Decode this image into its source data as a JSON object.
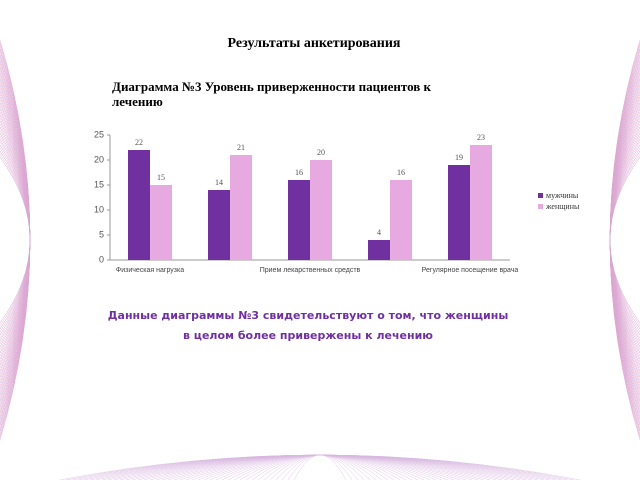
{
  "page_title": "Результаты анкетирования",
  "chart_data": {
    "type": "bar",
    "title": "Диаграмма №3 Уровень приверженности пациентов к лечению",
    "categories": [
      "Физическая нагрузка",
      null,
      "Прием лекарственных средств",
      null,
      "Регулярное посещение врача"
    ],
    "series": [
      {
        "name": "мужчины",
        "color": "#7030a0",
        "values": [
          22,
          14,
          16,
          4,
          19
        ]
      },
      {
        "name": "женщины",
        "color": "#e6a9e0",
        "values": [
          15,
          21,
          20,
          16,
          23
        ]
      }
    ],
    "ylim": [
      0,
      25
    ],
    "yticks": [
      0,
      5,
      10,
      15,
      20,
      25
    ],
    "grid": false,
    "legend": "right"
  },
  "conclusion": [
    "Данные диаграммы №3 свидетельствуют о том, что женщины",
    "в целом более привержены к лечению"
  ]
}
